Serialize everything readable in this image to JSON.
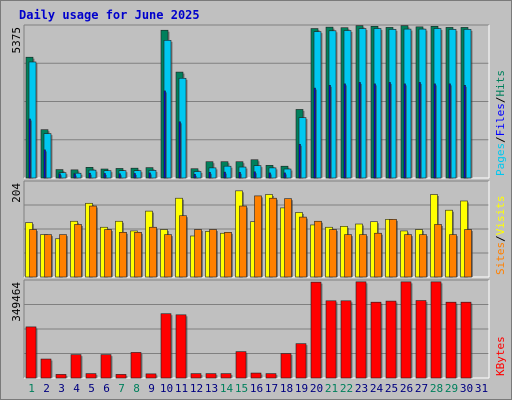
{
  "title": "Daily usage for June 2025",
  "colors": {
    "hits": "#00805c",
    "files": "#0000ff",
    "pages": "#00c8f0",
    "visits": "#ffff00",
    "sites": "#ff8000",
    "kbytes": "#ff0000",
    "weekend_day": "#00805c",
    "weekday": "#000080",
    "title": "#0000cc"
  },
  "chart_data": [
    {
      "type": "bar",
      "panel": "hits-files-pages",
      "ymax_label": "5375",
      "ylim": [
        0,
        5375
      ],
      "legend": [
        {
          "name": "Pages",
          "color": "#00c8f0"
        },
        {
          "name": "Files",
          "color": "#0000ff"
        },
        {
          "name": "Hits",
          "color": "#00805c"
        }
      ],
      "categories": [
        "1",
        "2",
        "3",
        "4",
        "5",
        "6",
        "7",
        "8",
        "9",
        "10",
        "11",
        "12",
        "13",
        "14",
        "15",
        "16",
        "17",
        "18",
        "19",
        "20",
        "21",
        "22",
        "23",
        "24",
        "25",
        "26",
        "27",
        "28",
        "29",
        "30",
        "31"
      ],
      "series": [
        {
          "name": "Hits",
          "values": [
            4300,
            1720,
            300,
            290,
            380,
            320,
            340,
            350,
            370,
            5260,
            3770,
            330,
            580,
            580,
            580,
            650,
            450,
            420,
            2440,
            5320,
            5370,
            5350,
            5420,
            5400,
            5360,
            5420,
            5380,
            5400,
            5360,
            5360,
            0
          ]
        },
        {
          "name": "Files",
          "values": [
            2100,
            1000,
            150,
            140,
            170,
            160,
            150,
            160,
            180,
            3100,
            2000,
            130,
            200,
            210,
            200,
            220,
            180,
            180,
            1200,
            3200,
            3300,
            3350,
            3400,
            3350,
            3400,
            3350,
            3400,
            3350,
            3350,
            3300,
            0
          ]
        },
        {
          "name": "Pages",
          "values": [
            4130,
            1580,
            190,
            170,
            280,
            260,
            260,
            260,
            270,
            4900,
            3550,
            230,
            360,
            420,
            390,
            440,
            360,
            320,
            2150,
            5210,
            5240,
            5250,
            5320,
            5320,
            5290,
            5300,
            5300,
            5320,
            5290,
            5290,
            0
          ]
        }
      ]
    },
    {
      "type": "bar",
      "panel": "visits-sites",
      "ymax_label": "204",
      "ylim": [
        0,
        204
      ],
      "legend": [
        {
          "name": "Sites",
          "color": "#ff8000"
        },
        {
          "name": "Visits",
          "color": "#ffff00"
        }
      ],
      "categories": [
        "1",
        "2",
        "3",
        "4",
        "5",
        "6",
        "7",
        "8",
        "9",
        "10",
        "11",
        "12",
        "13",
        "14",
        "15",
        "16",
        "17",
        "18",
        "19",
        "20",
        "21",
        "22",
        "23",
        "24",
        "25",
        "26",
        "27",
        "28",
        "29",
        "30",
        "31"
      ],
      "series": [
        {
          "name": "Visits",
          "values": [
            118,
            92,
            83,
            121,
            160,
            108,
            121,
            100,
            143,
            103,
            171,
            89,
            99,
            95,
            187,
            120,
            179,
            150,
            140,
            113,
            108,
            110,
            115,
            120,
            125,
            100,
            103,
            179,
            145,
            165,
            0
          ]
        },
        {
          "name": "Sites",
          "values": [
            103,
            92,
            92,
            114,
            154,
            103,
            97,
            97,
            108,
            92,
            133,
            103,
            103,
            97,
            154,
            176,
            171,
            170,
            130,
            121,
            103,
            92,
            92,
            95,
            125,
            92,
            92,
            114,
            92,
            103,
            0
          ]
        }
      ]
    },
    {
      "type": "bar",
      "panel": "kbytes",
      "ymax_label": "349464",
      "ylim": [
        0,
        349464
      ],
      "legend": [
        {
          "name": "KBytes",
          "color": "#ff0000"
        }
      ],
      "categories": [
        "1",
        "2",
        "3",
        "4",
        "5",
        "6",
        "7",
        "8",
        "9",
        "10",
        "11",
        "12",
        "13",
        "14",
        "15",
        "16",
        "17",
        "18",
        "19",
        "20",
        "21",
        "22",
        "23",
        "24",
        "25",
        "26",
        "27",
        "28",
        "29",
        "30",
        "31"
      ],
      "series": [
        {
          "name": "KBytes",
          "values": [
            186000,
            69000,
            13000,
            85000,
            16000,
            85000,
            13000,
            93000,
            15000,
            234000,
            230000,
            16000,
            16000,
            16000,
            96000,
            18000,
            16000,
            89000,
            125000,
            349000,
            281000,
            281000,
            350000,
            276000,
            280000,
            350000,
            282000,
            350000,
            276000,
            276000,
            0
          ]
        }
      ]
    }
  ],
  "x_labels": [
    {
      "text": "1",
      "weekend": true
    },
    {
      "text": "2",
      "weekend": false
    },
    {
      "text": "3",
      "weekend": false
    },
    {
      "text": "4",
      "weekend": false
    },
    {
      "text": "5",
      "weekend": false
    },
    {
      "text": "6",
      "weekend": false
    },
    {
      "text": "7",
      "weekend": true
    },
    {
      "text": "8",
      "weekend": true
    },
    {
      "text": "9",
      "weekend": false
    },
    {
      "text": "10",
      "weekend": false
    },
    {
      "text": "11",
      "weekend": false
    },
    {
      "text": "12",
      "weekend": false
    },
    {
      "text": "13",
      "weekend": false
    },
    {
      "text": "14",
      "weekend": true
    },
    {
      "text": "15",
      "weekend": true
    },
    {
      "text": "16",
      "weekend": false
    },
    {
      "text": "17",
      "weekend": false
    },
    {
      "text": "18",
      "weekend": false
    },
    {
      "text": "19",
      "weekend": false
    },
    {
      "text": "20",
      "weekend": false
    },
    {
      "text": "21",
      "weekend": true
    },
    {
      "text": "22",
      "weekend": true
    },
    {
      "text": "23",
      "weekend": false
    },
    {
      "text": "24",
      "weekend": false
    },
    {
      "text": "25",
      "weekend": false
    },
    {
      "text": "26",
      "weekend": false
    },
    {
      "text": "27",
      "weekend": false
    },
    {
      "text": "28",
      "weekend": true
    },
    {
      "text": "29",
      "weekend": true
    },
    {
      "text": "30",
      "weekend": false
    },
    {
      "text": "31",
      "weekend": false
    }
  ]
}
